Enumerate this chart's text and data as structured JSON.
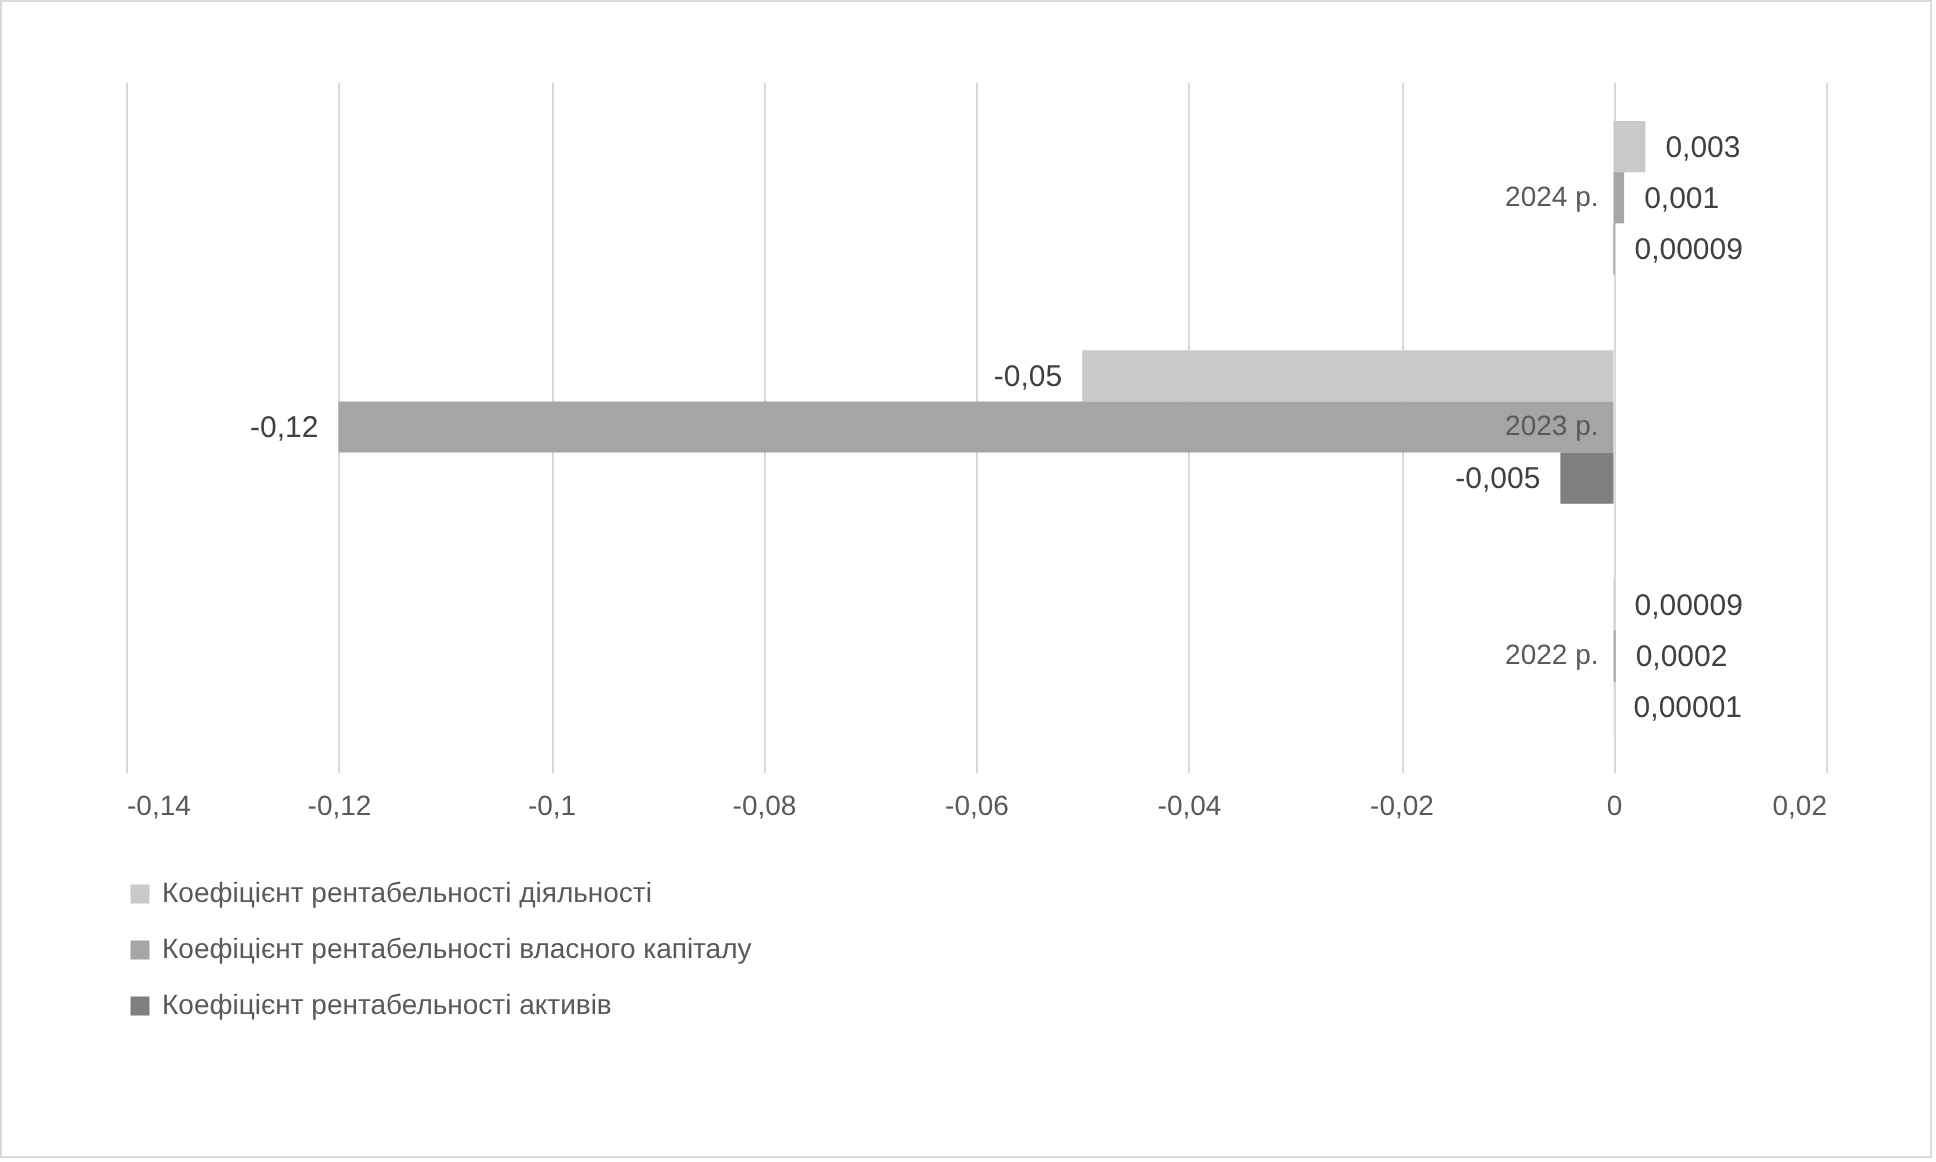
{
  "chart_data": {
    "type": "bar",
    "orientation": "horizontal",
    "categories": [
      "2024 р.",
      "2023 р.",
      "2022 р."
    ],
    "series": [
      {
        "name": "Коефіцієнт рентабельності діяльності",
        "color": "#c9c9c9",
        "values": [
          0.003,
          -0.05,
          9e-05
        ],
        "value_labels": [
          "0,003",
          "-0,05",
          "0,00009"
        ]
      },
      {
        "name": "Коефіцієнт рентабельності власного капіталу",
        "color": "#a5a5a5",
        "values": [
          0.001,
          -0.12,
          0.0002
        ],
        "value_labels": [
          "0,001",
          "-0,12",
          "0,0002"
        ]
      },
      {
        "name": "Коефіцієнт рентабельності активів",
        "color": "#7f7f7f",
        "values": [
          9e-05,
          -0.005,
          1e-05
        ],
        "value_labels": [
          "0,00009",
          "-0,005",
          "0,00001"
        ]
      }
    ],
    "xlim": [
      -0.14,
      0.02
    ],
    "xticks": [
      {
        "value": -0.14,
        "label": "-0,14"
      },
      {
        "value": -0.12,
        "label": "-0,12"
      },
      {
        "value": -0.1,
        "label": "-0,1"
      },
      {
        "value": -0.08,
        "label": "-0,08"
      },
      {
        "value": -0.06,
        "label": "-0,06"
      },
      {
        "value": -0.04,
        "label": "-0,04"
      },
      {
        "value": -0.02,
        "label": "-0,02"
      },
      0,
      {
        "value": 0.02,
        "label": "0,02"
      }
    ],
    "grid": "x",
    "legend": "bottom"
  }
}
